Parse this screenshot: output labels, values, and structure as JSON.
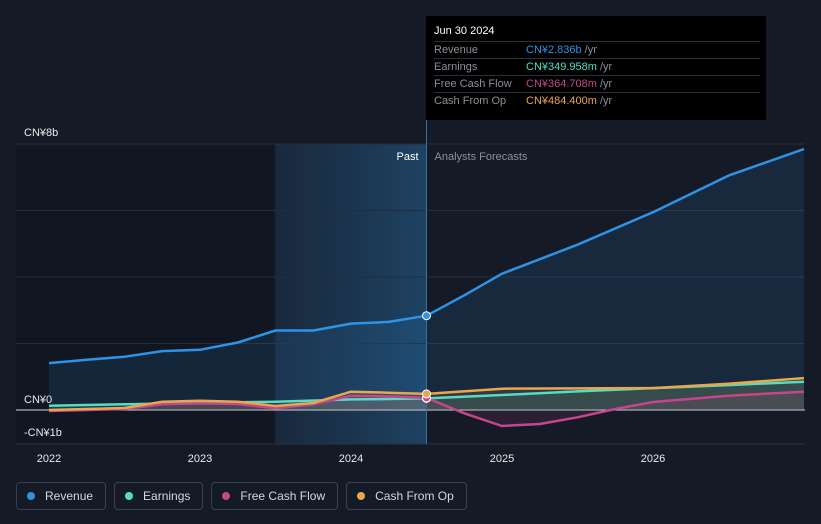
{
  "chart_data": {
    "type": "line",
    "y_unit": "CN¥ (billions)",
    "ylim": [
      -1,
      8
    ],
    "y_tick_labels": [
      {
        "value": 8,
        "label": "CN¥8b"
      },
      {
        "value": 0,
        "label": "CN¥0"
      },
      {
        "value": -1,
        "label": "-CN¥1b"
      }
    ],
    "x_tick_labels": [
      {
        "value": 2022.0,
        "label": "2022"
      },
      {
        "value": 2023.0,
        "label": "2023"
      },
      {
        "value": 2024.0,
        "label": "2024"
      },
      {
        "value": 2025.0,
        "label": "2025"
      },
      {
        "value": 2026.0,
        "label": "2026"
      }
    ],
    "xlim": [
      2021.82,
      2027.0
    ],
    "past_label": "Past",
    "forecast_label": "Analysts Forecasts",
    "divider_x": 2024.5,
    "shade_start_x": 2023.5,
    "series": [
      {
        "name": "Revenue",
        "color": "#2e93e6",
        "area": true,
        "points": [
          [
            2022.0,
            1.41
          ],
          [
            2022.25,
            1.51
          ],
          [
            2022.5,
            1.6
          ],
          [
            2022.75,
            1.77
          ],
          [
            2023.0,
            1.81
          ],
          [
            2023.25,
            2.03
          ],
          [
            2023.5,
            2.39
          ],
          [
            2023.75,
            2.39
          ],
          [
            2024.0,
            2.6
          ],
          [
            2024.25,
            2.65
          ],
          [
            2024.5,
            2.836
          ],
          [
            2024.75,
            3.45
          ],
          [
            2025.0,
            4.1
          ],
          [
            2025.5,
            4.97
          ],
          [
            2026.0,
            5.95
          ],
          [
            2026.5,
            7.05
          ],
          [
            2027.0,
            7.85
          ]
        ]
      },
      {
        "name": "Earnings",
        "color": "#57dbc1",
        "area": true,
        "points": [
          [
            2022.0,
            0.13
          ],
          [
            2022.5,
            0.17
          ],
          [
            2023.0,
            0.22
          ],
          [
            2023.5,
            0.25
          ],
          [
            2024.0,
            0.32
          ],
          [
            2024.25,
            0.33
          ],
          [
            2024.5,
            0.35
          ],
          [
            2025.0,
            0.45
          ],
          [
            2025.5,
            0.56
          ],
          [
            2026.0,
            0.66
          ],
          [
            2026.5,
            0.75
          ],
          [
            2027.0,
            0.85
          ]
        ]
      },
      {
        "name": "Free Cash Flow",
        "color": "#c5468d",
        "area": true,
        "points": [
          [
            2022.0,
            -0.03
          ],
          [
            2022.5,
            0.03
          ],
          [
            2022.75,
            0.17
          ],
          [
            2023.0,
            0.2
          ],
          [
            2023.25,
            0.18
          ],
          [
            2023.5,
            0.05
          ],
          [
            2023.75,
            0.17
          ],
          [
            2024.0,
            0.43
          ],
          [
            2024.25,
            0.41
          ],
          [
            2024.5,
            0.365
          ],
          [
            2024.75,
            -0.1
          ],
          [
            2025.0,
            -0.48
          ],
          [
            2025.25,
            -0.42
          ],
          [
            2025.5,
            -0.22
          ],
          [
            2025.75,
            0.03
          ],
          [
            2026.0,
            0.24
          ],
          [
            2026.5,
            0.43
          ],
          [
            2027.0,
            0.55
          ]
        ]
      },
      {
        "name": "Cash From Op",
        "color": "#e8a64f",
        "area": true,
        "points": [
          [
            2022.0,
            0.0
          ],
          [
            2022.5,
            0.06
          ],
          [
            2022.75,
            0.25
          ],
          [
            2023.0,
            0.28
          ],
          [
            2023.25,
            0.25
          ],
          [
            2023.5,
            0.12
          ],
          [
            2023.75,
            0.21
          ],
          [
            2024.0,
            0.55
          ],
          [
            2024.25,
            0.52
          ],
          [
            2024.5,
            0.484
          ],
          [
            2025.0,
            0.64
          ],
          [
            2025.5,
            0.65
          ],
          [
            2026.0,
            0.66
          ],
          [
            2026.5,
            0.79
          ],
          [
            2027.0,
            0.96
          ]
        ]
      }
    ]
  },
  "tooltip": {
    "date": "Jun 30 2024",
    "unit": "/yr",
    "rows": [
      {
        "label": "Revenue",
        "value": "CN¥2.836b",
        "color": "#2e93e6"
      },
      {
        "label": "Earnings",
        "value": "CN¥349.958m",
        "color": "#57dbc1"
      },
      {
        "label": "Free Cash Flow",
        "value": "CN¥364.708m",
        "color": "#c5468d"
      },
      {
        "label": "Cash From Op",
        "value": "CN¥484.400m",
        "color": "#e8a64f"
      }
    ]
  },
  "legend": [
    {
      "label": "Revenue",
      "color": "#2e93e6"
    },
    {
      "label": "Earnings",
      "color": "#57dbc1"
    },
    {
      "label": "Free Cash Flow",
      "color": "#c5468d"
    },
    {
      "label": "Cash From Op",
      "color": "#e8a64f"
    }
  ]
}
